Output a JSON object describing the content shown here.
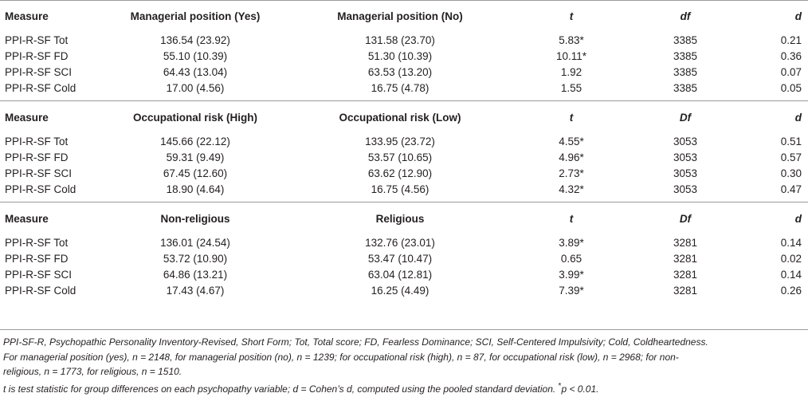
{
  "sections": [
    {
      "header": {
        "measure": "Measure",
        "group1": "Managerial position (Yes)",
        "group2": "Managerial position (No)",
        "t": "t",
        "df": "df",
        "d": "d"
      },
      "rows": [
        {
          "measure": "PPI-R-SF Tot",
          "g1": "136.54 (23.92)",
          "g2": "131.58 (23.70)",
          "t": "5.83*",
          "df": "3385",
          "d": "0.21"
        },
        {
          "measure": "PPI-R-SF FD",
          "g1": "55.10 (10.39)",
          "g2": "51.30 (10.39)",
          "t": "10.11*",
          "df": "3385",
          "d": "0.36"
        },
        {
          "measure": "PPI-R-SF SCI",
          "g1": "64.43 (13.04)",
          "g2": "63.53 (13.20)",
          "t": "1.92",
          "df": "3385",
          "d": "0.07"
        },
        {
          "measure": "PPI-R-SF Cold",
          "g1": "17.00 (4.56)",
          "g2": "16.75 (4.78)",
          "t": "1.55",
          "df": "3385",
          "d": "0.05"
        }
      ]
    },
    {
      "header": {
        "measure": "Measure",
        "group1": "Occupational risk (High)",
        "group2": "Occupational risk (Low)",
        "t": "t",
        "df": "Df",
        "d": "d"
      },
      "rows": [
        {
          "measure": "PPI-R-SF Tot",
          "g1": "145.66 (22.12)",
          "g2": "133.95 (23.72)",
          "t": "4.55*",
          "df": "3053",
          "d": "0.51"
        },
        {
          "measure": "PPI-R-SF FD",
          "g1": "59.31 (9.49)",
          "g2": "53.57 (10.65)",
          "t": "4.96*",
          "df": "3053",
          "d": "0.57"
        },
        {
          "measure": "PPI-R-SF SCI",
          "g1": "67.45 (12.60)",
          "g2": "63.62 (12.90)",
          "t": "2.73*",
          "df": "3053",
          "d": "0.30"
        },
        {
          "measure": "PPI-R-SF Cold",
          "g1": "18.90 (4.64)",
          "g2": "16.75 (4.56)",
          "t": "4.32*",
          "df": "3053",
          "d": "0.47"
        }
      ]
    },
    {
      "header": {
        "measure": "Measure",
        "group1": "Non-religious",
        "group2": "Religious",
        "t": "t",
        "df": "Df",
        "d": "d"
      },
      "rows": [
        {
          "measure": "PPI-R-SF Tot",
          "g1": "136.01 (24.54)",
          "g2": "132.76 (23.01)",
          "t": "3.89*",
          "df": "3281",
          "d": "0.14"
        },
        {
          "measure": "PPI-R-SF FD",
          "g1": "53.72 (10.90)",
          "g2": "53.47 (10.47)",
          "t": "0.65",
          "df": "3281",
          "d": "0.02"
        },
        {
          "measure": "PPI-R-SF SCI",
          "g1": "64.86 (13.21)",
          "g2": "63.04 (12.81)",
          "t": "3.99*",
          "df": "3281",
          "d": "0.14"
        },
        {
          "measure": "PPI-R-SF Cold",
          "g1": "17.43 (4.67)",
          "g2": "16.25 (4.49)",
          "t": "7.39*",
          "df": "3281",
          "d": "0.26"
        }
      ]
    }
  ],
  "notes": {
    "line1": "PPI-SF-R, Psychopathic Personality Inventory-Revised, Short Form; Tot, Total score; FD, Fearless Dominance; SCI, Self-Centered Impulsivity; Cold, Coldheartedness.",
    "line2": "For managerial position (yes), n = 2148, for managerial position (no), n = 1239; for occupational risk (high), n = 87, for occupational risk (low), n = 2968; for non-",
    "line3": "religious, n = 1773, for religious, n = 1510.",
    "line4_main": "t is test statistic for group differences on each psychopathy variable; d = Cohen’s d, computed using the pooled standard deviation.",
    "line4_star": "*",
    "line4_p": "p < 0.01."
  }
}
